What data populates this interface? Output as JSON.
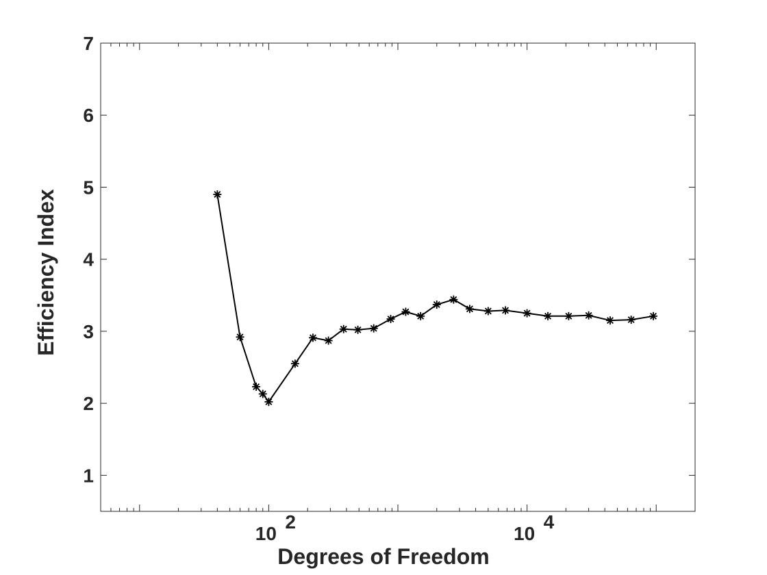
{
  "chart_data": {
    "type": "line",
    "title": "",
    "xlabel": "Degrees of Freedom",
    "ylabel": "Efficiency Index",
    "xscale": "log",
    "xlim": [
      5,
      200000
    ],
    "ylim": [
      0.5,
      7
    ],
    "grid": false,
    "legend": "none",
    "marker": "asterisk",
    "x_ticks": [
      {
        "value": 100,
        "base": "10",
        "exponent": "2"
      },
      {
        "value": 10000,
        "base": "10",
        "exponent": "4"
      }
    ],
    "y_ticks": [
      "1",
      "2",
      "3",
      "4",
      "5",
      "6",
      "7"
    ],
    "series": [
      {
        "color": "#000000",
        "points": [
          {
            "x": 40,
            "y": 4.9
          },
          {
            "x": 60,
            "y": 2.92
          },
          {
            "x": 80,
            "y": 2.23
          },
          {
            "x": 90,
            "y": 2.13
          },
          {
            "x": 100,
            "y": 2.02
          },
          {
            "x": 160,
            "y": 2.55
          },
          {
            "x": 220,
            "y": 2.91
          },
          {
            "x": 290,
            "y": 2.87
          },
          {
            "x": 380,
            "y": 3.03
          },
          {
            "x": 490,
            "y": 3.02
          },
          {
            "x": 650,
            "y": 3.04
          },
          {
            "x": 880,
            "y": 3.17
          },
          {
            "x": 1150,
            "y": 3.27
          },
          {
            "x": 1500,
            "y": 3.21
          },
          {
            "x": 2000,
            "y": 3.37
          },
          {
            "x": 2700,
            "y": 3.44
          },
          {
            "x": 3600,
            "y": 3.31
          },
          {
            "x": 5000,
            "y": 3.28
          },
          {
            "x": 6800,
            "y": 3.29
          },
          {
            "x": 10000,
            "y": 3.25
          },
          {
            "x": 14500,
            "y": 3.21
          },
          {
            "x": 21000,
            "y": 3.21
          },
          {
            "x": 30000,
            "y": 3.22
          },
          {
            "x": 44000,
            "y": 3.15
          },
          {
            "x": 64000,
            "y": 3.16
          },
          {
            "x": 95000,
            "y": 3.21
          }
        ]
      }
    ]
  }
}
